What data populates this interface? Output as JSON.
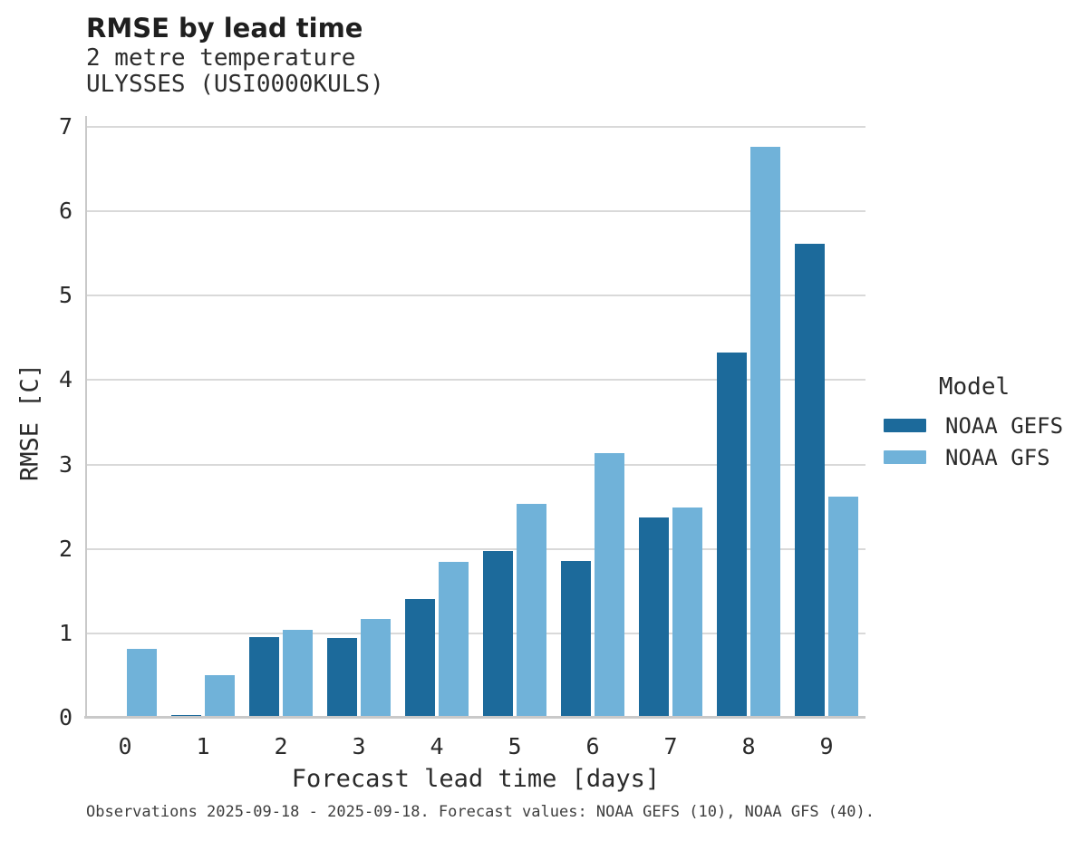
{
  "chart_data": {
    "type": "bar",
    "title": "RMSE by lead time",
    "subtitle": [
      "2 metre temperature",
      "ULYSSES (USI0000KULS)"
    ],
    "xlabel": "Forecast lead time [days]",
    "ylabel": "RMSE [C]",
    "categories": [
      "0",
      "1",
      "2",
      "3",
      "4",
      "5",
      "6",
      "7",
      "8",
      "9"
    ],
    "series": [
      {
        "name": "NOAA GEFS",
        "color": "#1c6a9b",
        "values": [
          null,
          0.03,
          0.96,
          0.94,
          1.41,
          1.98,
          1.86,
          2.37,
          4.33,
          5.61
        ]
      },
      {
        "name": "NOAA GFS",
        "color": "#70b2d9",
        "values": [
          0.82,
          0.5,
          1.04,
          1.17,
          1.85,
          2.53,
          3.14,
          2.49,
          6.76,
          2.62
        ]
      }
    ],
    "ylim": [
      0,
      7
    ],
    "ytick_step": 1,
    "grid": true,
    "legend_title": "Model",
    "legend_position": "right-center"
  },
  "caption": {
    "text": "Observations 2025-09-18 - 2025-09-18. Forecast values: NOAA GEFS (10), NOAA GFS (40)."
  },
  "colors": {
    "grid": "#d9d9d9",
    "axis": "#c9c9c9",
    "tick_text": "#2a2a2a",
    "title_text": "#1f1f1f",
    "caption_text": "#3e3e3e",
    "background": "#ffffff"
  }
}
